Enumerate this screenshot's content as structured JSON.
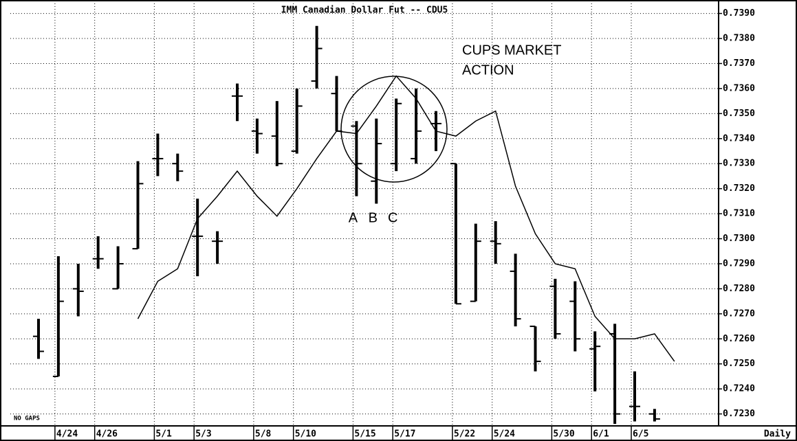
{
  "chart_data": {
    "type": "ohlc",
    "title": "IMM Canadian Dollar Fut -- CDU5",
    "color": "#000000",
    "categories": [
      null,
      "4/24",
      null,
      "4/26",
      null,
      null,
      "5/1",
      null,
      "5/3",
      null,
      null,
      "5/8",
      null,
      "5/10",
      null,
      null,
      "5/15",
      null,
      "5/17",
      null,
      null,
      "5/22",
      null,
      "5/24",
      null,
      null,
      "5/30",
      null,
      "6/1",
      null,
      "6/5",
      null,
      null
    ],
    "open": [
      0.7261,
      0.7245,
      0.728,
      0.7292,
      0.728,
      0.7296,
      0.7332,
      0.733,
      0.7301,
      0.7299,
      0.7357,
      0.7343,
      0.7341,
      0.7335,
      0.7363,
      0.7358,
      0.7345,
      0.7323,
      0.733,
      0.7332,
      0.7346,
      0.733,
      0.7275,
      0.7299,
      0.7287,
      0.7265,
      0.7281,
      0.7275,
      0.7256,
      0.7262,
      0.7233,
      0.723,
      null
    ],
    "high": [
      0.7268,
      0.7293,
      0.729,
      0.7301,
      0.7297,
      0.7331,
      0.7342,
      0.7334,
      0.7316,
      0.7303,
      0.7362,
      0.7348,
      0.7355,
      0.736,
      0.7385,
      0.7365,
      0.7347,
      0.7348,
      0.7356,
      0.736,
      0.7351,
      0.733,
      0.7306,
      0.7307,
      0.7294,
      0.7265,
      0.7284,
      0.7283,
      0.7263,
      0.7266,
      0.7247,
      0.7232,
      null
    ],
    "low": [
      0.7252,
      0.7245,
      0.7269,
      0.7288,
      0.728,
      0.7296,
      0.7325,
      0.7323,
      0.7285,
      0.729,
      0.7347,
      0.7334,
      0.7329,
      0.7334,
      0.736,
      0.7343,
      0.7317,
      0.7314,
      0.7327,
      0.733,
      0.7335,
      0.7274,
      0.7275,
      0.729,
      0.7265,
      0.7247,
      0.726,
      0.7255,
      0.7239,
      0.7226,
      0.7227,
      0.7227,
      null
    ],
    "close": [
      0.7255,
      0.7275,
      0.7279,
      0.7292,
      0.729,
      0.7322,
      0.7332,
      0.7327,
      0.7301,
      0.7299,
      0.7357,
      0.7342,
      0.733,
      0.7353,
      0.7376,
      0.7343,
      0.733,
      0.7338,
      0.7354,
      0.7343,
      0.7346,
      0.7274,
      0.7299,
      0.7298,
      0.7268,
      0.7251,
      0.7262,
      0.726,
      0.7257,
      0.723,
      0.7233,
      0.7228,
      null
    ],
    "moving_average": [
      null,
      null,
      null,
      null,
      null,
      0.7268,
      0.7283,
      0.7288,
      0.7308,
      0.7317,
      0.7327,
      0.7317,
      0.7309,
      0.732,
      0.7332,
      0.7343,
      0.7342,
      0.7353,
      0.7365,
      0.7356,
      0.7343,
      0.7341,
      0.7347,
      0.7351,
      0.7321,
      0.7302,
      0.729,
      0.7288,
      0.7269,
      0.726,
      0.726,
      0.7262,
      0.7251
    ],
    "ylim": [
      0.72255,
      0.7394
    ],
    "yticks": [
      {
        "value": 0.723,
        "label": "0.7230"
      },
      {
        "value": 0.724,
        "label": "0.7240"
      },
      {
        "value": 0.725,
        "label": "0.7250"
      },
      {
        "value": 0.726,
        "label": "0.7260"
      },
      {
        "value": 0.727,
        "label": "0.7270"
      },
      {
        "value": 0.728,
        "label": "0.7280"
      },
      {
        "value": 0.729,
        "label": "0.7290"
      },
      {
        "value": 0.73,
        "label": "0.7300"
      },
      {
        "value": 0.731,
        "label": "0.7310"
      },
      {
        "value": 0.732,
        "label": "0.7320"
      },
      {
        "value": 0.733,
        "label": "0.7330"
      },
      {
        "value": 0.734,
        "label": "0.7340"
      },
      {
        "value": 0.735,
        "label": "0.7350"
      },
      {
        "value": 0.736,
        "label": "0.7360"
      },
      {
        "value": 0.737,
        "label": "0.7370"
      },
      {
        "value": 0.738,
        "label": "0.7380"
      },
      {
        "value": 0.739,
        "label": "0.7390"
      }
    ],
    "grid": true,
    "annotation_lines": [
      "CUPS MARKET",
      "ACTION"
    ],
    "point_labels": [
      "A",
      "B",
      "C"
    ],
    "corner_note": "NO GAPS",
    "period": "Daily"
  }
}
